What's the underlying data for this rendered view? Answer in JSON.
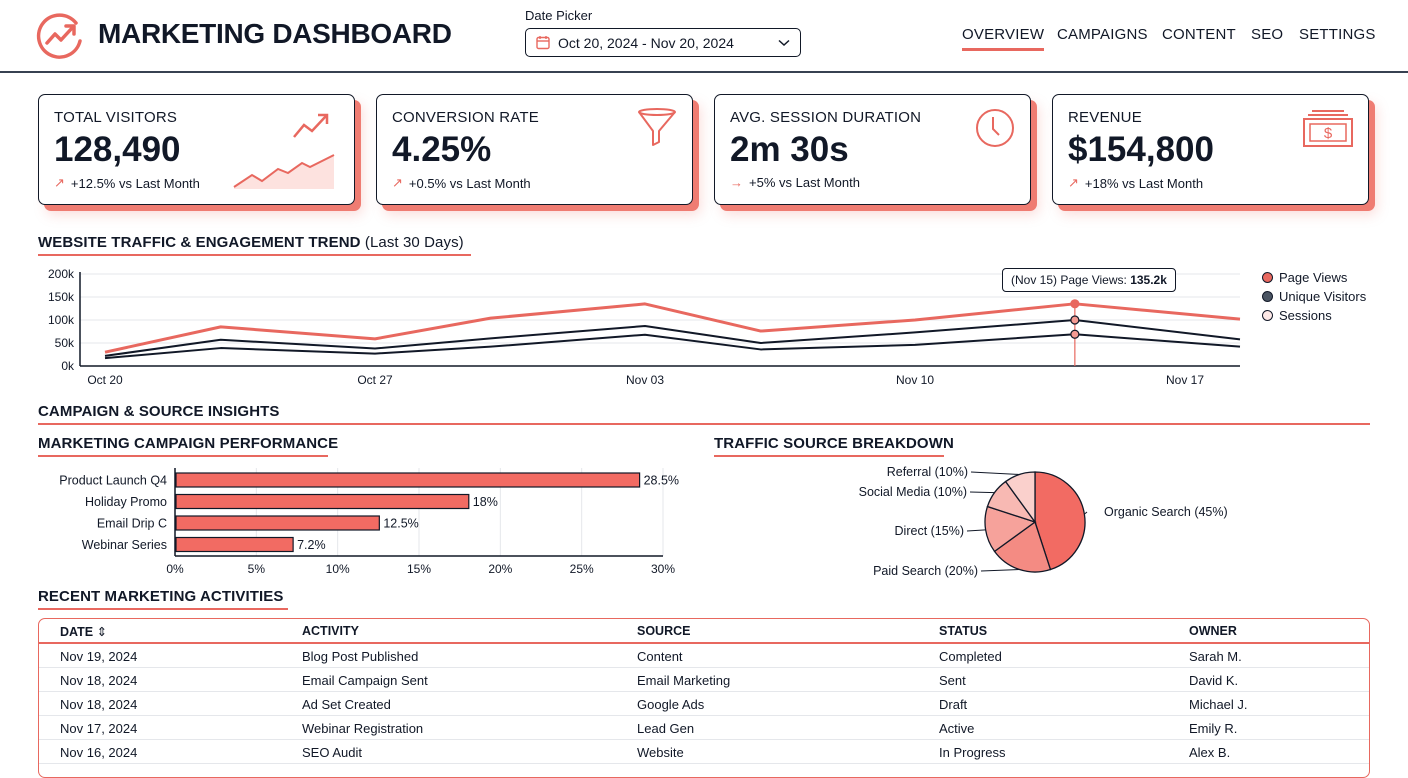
{
  "header": {
    "title": "MARKETING DASHBOARD",
    "logo_icon": "trend-circle-icon",
    "date_picker": {
      "label": "Date Picker",
      "value": "Oct 20, 2024 - Nov 20, 2024"
    },
    "nav": [
      {
        "label": "OVERVIEW",
        "active": true
      },
      {
        "label": "CAMPAIGNS"
      },
      {
        "label": "CONTENT"
      },
      {
        "label": "SEO"
      },
      {
        "label": "SETTINGS"
      }
    ]
  },
  "colors": {
    "accent": "#e8685f",
    "dark": "#111827",
    "shadow": "#ef7c72"
  },
  "kpis": [
    {
      "label": "TOTAL VISITORS",
      "value": "128,490",
      "change": "+12.5% vs Last Month",
      "arrow": "↗",
      "icon": "trend-up-icon"
    },
    {
      "label": "CONVERSION RATE",
      "value": "4.25%",
      "change": "+0.5% vs Last Month",
      "arrow": "↗",
      "icon": "funnel-icon"
    },
    {
      "label": "AVG. SESSION DURATION",
      "value": "2m 30s",
      "change": "+5% vs Last Month",
      "arrow": "→",
      "icon": "clock-icon"
    },
    {
      "label": "REVENUE",
      "value": "$154,800",
      "change": "+18% vs Last Month",
      "arrow": "↗",
      "icon": "money-icon"
    }
  ],
  "trend": {
    "title": "WEBSITE TRAFFIC & ENGAGEMENT TREND",
    "subtitle": "(Last 30 Days)",
    "tooltip": {
      "prefix": "(Nov 15) Page Views:",
      "value": "135.2k"
    }
  },
  "insights_title": "CAMPAIGN & SOURCE INSIGHTS",
  "chart_data": [
    {
      "type": "line",
      "ylim": [
        0,
        200000
      ],
      "yticks": [
        "0k",
        "50k",
        "100k",
        "150k",
        "200k"
      ],
      "xticks": [
        "Oct 20",
        "Oct 27",
        "Nov 03",
        "Nov 10",
        "Nov 17"
      ],
      "grid": true,
      "legend": "right",
      "x": [
        "2024-10-20",
        "2024-10-23",
        "2024-10-27",
        "2024-10-30",
        "2024-11-03",
        "2024-11-06",
        "2024-11-10",
        "2024-11-15",
        "2024-11-19"
      ],
      "series": [
        {
          "name": "Page Views",
          "color": "#e8685f",
          "values": [
            30000,
            85000,
            59000,
            104000,
            135000,
            76000,
            100000,
            135200,
            102000
          ]
        },
        {
          "name": "Unique Visitors",
          "color": "#111827",
          "values": [
            22000,
            57000,
            38000,
            60000,
            87000,
            50000,
            73000,
            100000,
            58000
          ]
        },
        {
          "name": "Sessions",
          "color": "#111827",
          "values": [
            17000,
            39000,
            27000,
            42000,
            68000,
            36000,
            46000,
            69000,
            42000
          ]
        }
      ]
    },
    {
      "type": "bar",
      "title": "MARKETING CAMPAIGN PERFORMANCE",
      "orientation": "horizontal",
      "categories": [
        "Product Launch Q4",
        "Holiday Promo",
        "Email Drip C",
        "Webinar Series"
      ],
      "values": [
        28.5,
        18,
        12.5,
        7.2
      ],
      "labels": [
        "28.5%",
        "18%",
        "12.5%",
        "7.2%"
      ],
      "xlim": [
        0,
        30
      ],
      "xticks": [
        "0%",
        "5%",
        "10%",
        "15%",
        "20%",
        "25%",
        "30%"
      ],
      "grid": true
    },
    {
      "type": "pie",
      "title": "TRAFFIC SOURCE BREAKDOWN",
      "slices": [
        {
          "label": "Organic Search (45%)",
          "value": 45,
          "color": "#f26b63"
        },
        {
          "label": "Paid Search (20%)",
          "value": 20,
          "color": "#f48b83"
        },
        {
          "label": "Direct (15%)",
          "value": 15,
          "color": "#f6a29b"
        },
        {
          "label": "Social Media (10%)",
          "value": 10,
          "color": "#f8b9b3"
        },
        {
          "label": "Referral (10%)",
          "value": 10,
          "color": "#fad0cc"
        }
      ]
    }
  ],
  "activities": {
    "title": "RECENT MARKETING ACTIVITIES",
    "columns": [
      "DATE",
      "ACTIVITY",
      "SOURCE",
      "STATUS",
      "OWNER"
    ],
    "sort_icon": "⇕",
    "rows": [
      [
        "Nov 19, 2024",
        "Blog Post Published",
        "Content",
        "Completed",
        "Sarah M."
      ],
      [
        "Nov 18, 2024",
        "Email Campaign Sent",
        "Email Marketing",
        "Sent",
        "David K."
      ],
      [
        "Nov 18, 2024",
        "Ad Set Created",
        "Google Ads",
        "Draft",
        "Michael J."
      ],
      [
        "Nov 17, 2024",
        "Webinar Registration",
        "Lead Gen",
        "Active",
        "Emily R."
      ],
      [
        "Nov 16, 2024",
        "SEO Audit",
        "Website",
        "In Progress",
        "Alex B."
      ]
    ]
  }
}
